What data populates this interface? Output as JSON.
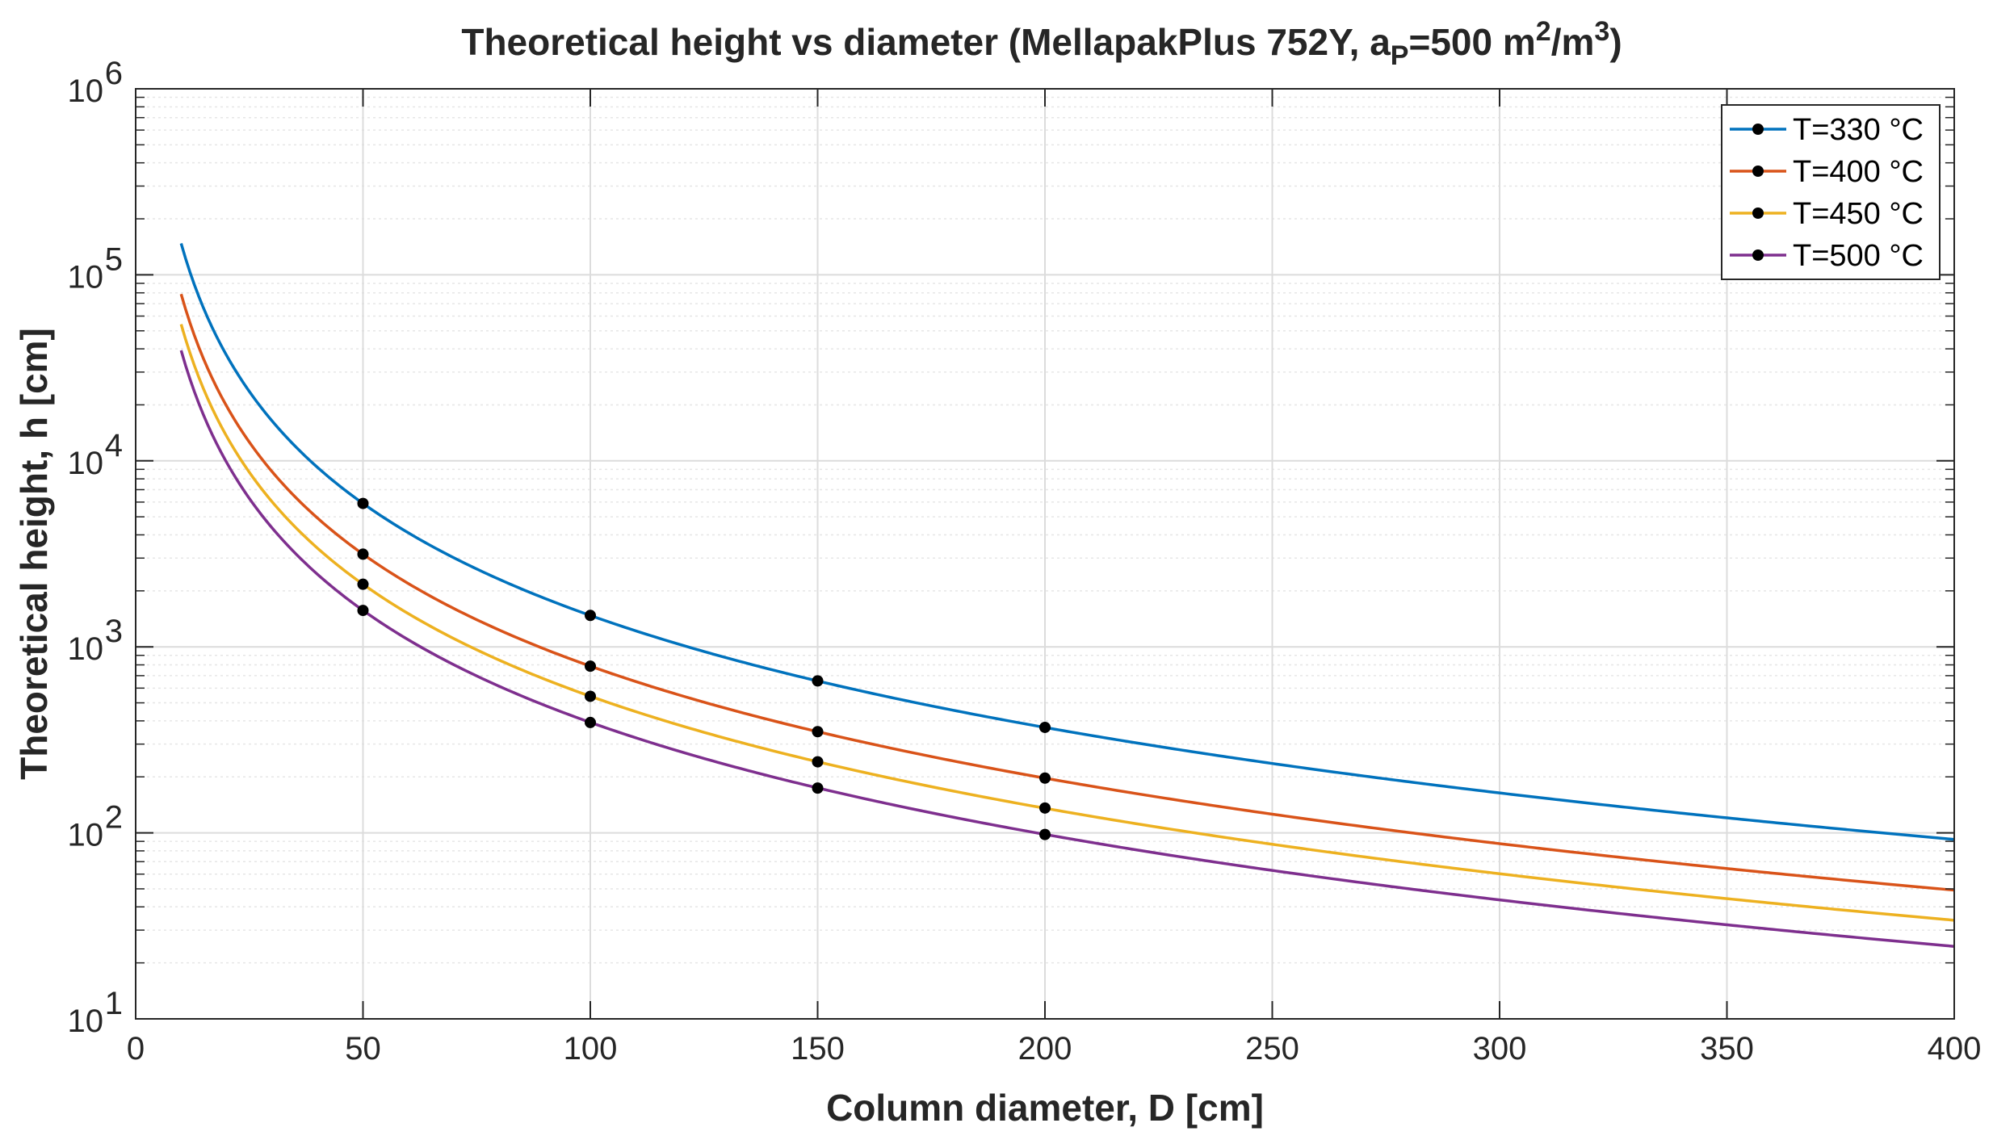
{
  "chart_data": {
    "type": "line",
    "title": {
      "main": "Theoretical height vs diameter (MellapakPlus 752Y, a",
      "sub": "P",
      "mid": "=500 m",
      "sup1": "2",
      "mid2": "/m",
      "sup2": "3",
      "end": ")"
    },
    "xlabel": "Column diameter, D [cm]",
    "ylabel": "Theoretical height, h [cm]",
    "xlim": [
      0,
      400
    ],
    "ylim": [
      10,
      1000000
    ],
    "yscale": "log",
    "grid": true,
    "minor_grid": true,
    "legend_location": "top-right",
    "x_ticks": [
      {
        "value": 0,
        "label": "0"
      },
      {
        "value": 50,
        "label": "50"
      },
      {
        "value": 100,
        "label": "100"
      },
      {
        "value": 150,
        "label": "150"
      },
      {
        "value": 200,
        "label": "200"
      },
      {
        "value": 250,
        "label": "250"
      },
      {
        "value": 300,
        "label": "300"
      },
      {
        "value": 350,
        "label": "350"
      },
      {
        "value": 400,
        "label": "400"
      }
    ],
    "y_ticks": [
      {
        "value": 10,
        "base": "10",
        "exp": "1"
      },
      {
        "value": 100,
        "base": "10",
        "exp": "2"
      },
      {
        "value": 1000,
        "base": "10",
        "exp": "3"
      },
      {
        "value": 10000,
        "base": "10",
        "exp": "4"
      },
      {
        "value": 100000,
        "base": "10",
        "exp": "5"
      },
      {
        "value": 1000000,
        "base": "10",
        "exp": "6"
      }
    ],
    "x_range_curve": [
      10,
      400
    ],
    "series": [
      {
        "name": "T=330 °C",
        "color": "#0072BD",
        "law": "power",
        "exponent": -2,
        "anchor_x": 50,
        "anchor_y": 5900,
        "markers": [
          {
            "x": 50,
            "y": 5900
          },
          {
            "x": 100,
            "y": 1475
          },
          {
            "x": 150,
            "y": 656
          },
          {
            "x": 200,
            "y": 369
          }
        ]
      },
      {
        "name": "T=400 °C",
        "color": "#D95319",
        "law": "power",
        "exponent": -2,
        "anchor_x": 50,
        "anchor_y": 3150,
        "markers": [
          {
            "x": 50,
            "y": 3150
          },
          {
            "x": 100,
            "y": 787
          },
          {
            "x": 150,
            "y": 350
          },
          {
            "x": 200,
            "y": 197
          }
        ]
      },
      {
        "name": "T=450 °C",
        "color": "#EDB120",
        "law": "power",
        "exponent": -2,
        "anchor_x": 50,
        "anchor_y": 2170,
        "markers": [
          {
            "x": 50,
            "y": 2170
          },
          {
            "x": 100,
            "y": 542
          },
          {
            "x": 150,
            "y": 241
          },
          {
            "x": 200,
            "y": 136
          }
        ]
      },
      {
        "name": "T=500 °C",
        "color": "#7E2F8E",
        "law": "power",
        "exponent": -2,
        "anchor_x": 50,
        "anchor_y": 1570,
        "markers": [
          {
            "x": 50,
            "y": 1570
          },
          {
            "x": 100,
            "y": 392
          },
          {
            "x": 150,
            "y": 174
          },
          {
            "x": 200,
            "y": 98
          }
        ]
      }
    ]
  }
}
